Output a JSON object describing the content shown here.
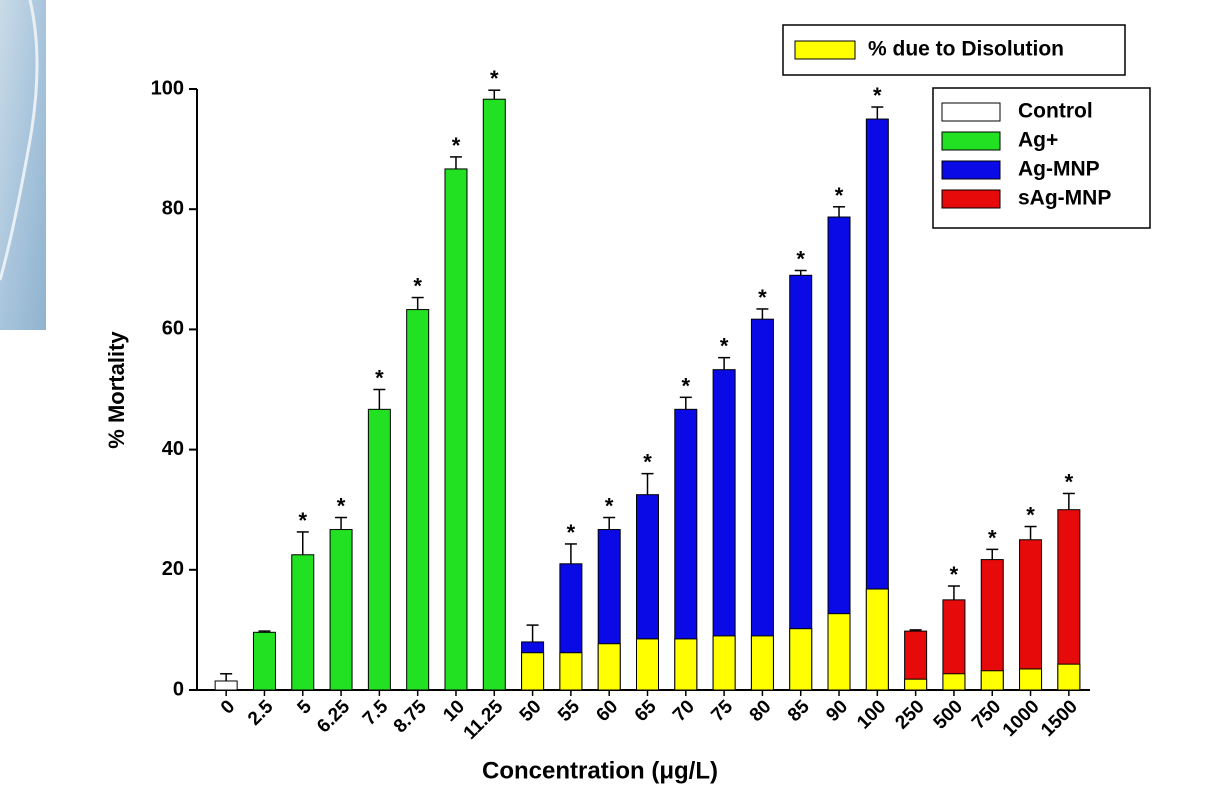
{
  "chart_data": {
    "type": "bar",
    "y_label": "% Mortality",
    "x_label": "Concentration (μg/L)",
    "categories": [
      "0",
      "2.5",
      "5",
      "6.25",
      "7.5",
      "8.75",
      "10",
      "11.25",
      "50",
      "55",
      "60",
      "65",
      "70",
      "75",
      "80",
      "85",
      "90",
      "100",
      "250",
      "500",
      "750",
      "1000",
      "1500"
    ],
    "series": [
      {
        "name": "Control",
        "color": "#ffffff",
        "values": [
          1.5,
          null,
          null,
          null,
          null,
          null,
          null,
          null,
          null,
          null,
          null,
          null,
          null,
          null,
          null,
          null,
          null,
          null,
          null,
          null,
          null,
          null,
          null
        ],
        "errors": [
          1.2,
          null,
          null,
          null,
          null,
          null,
          null,
          null,
          null,
          null,
          null,
          null,
          null,
          null,
          null,
          null,
          null,
          null,
          null,
          null,
          null,
          null,
          null
        ]
      },
      {
        "name": "Ag+",
        "color": "#22e022",
        "values": [
          null,
          9.6,
          22.5,
          26.7,
          46.7,
          63.3,
          86.7,
          98.3,
          null,
          null,
          null,
          null,
          null,
          null,
          null,
          null,
          null,
          null,
          null,
          null,
          null,
          null,
          null
        ],
        "errors": [
          null,
          0.2,
          3.8,
          2,
          3.3,
          2,
          2,
          1.5,
          null,
          null,
          null,
          null,
          null,
          null,
          null,
          null,
          null,
          null,
          null,
          null,
          null,
          null,
          null
        ]
      },
      {
        "name": "Ag-MNP",
        "color": "#0a0ae6",
        "values": [
          null,
          null,
          null,
          null,
          null,
          null,
          null,
          null,
          8,
          21,
          26.7,
          32.5,
          46.7,
          53.3,
          61.7,
          69,
          78.7,
          95,
          null,
          null,
          null,
          null,
          null
        ],
        "errors": [
          null,
          null,
          null,
          null,
          null,
          null,
          null,
          null,
          2.8,
          3.3,
          2,
          3.5,
          2,
          2,
          1.7,
          0.8,
          1.7,
          2,
          null,
          null,
          null,
          null,
          null
        ]
      },
      {
        "name": "sAg-MNP",
        "color": "#e60a0a",
        "values": [
          null,
          null,
          null,
          null,
          null,
          null,
          null,
          null,
          null,
          null,
          null,
          null,
          null,
          null,
          null,
          null,
          null,
          null,
          9.8,
          15,
          21.7,
          25,
          30
        ],
        "errors": [
          null,
          null,
          null,
          null,
          null,
          null,
          null,
          null,
          null,
          null,
          null,
          null,
          null,
          null,
          null,
          null,
          null,
          null,
          0.2,
          2.3,
          1.7,
          2.2,
          2.7
        ]
      }
    ],
    "dissolution": {
      "name": "% due to Disolution",
      "color": "#ffff00",
      "values": [
        null,
        null,
        null,
        null,
        null,
        null,
        null,
        null,
        6.2,
        6.2,
        7.7,
        8.5,
        8.5,
        9,
        9,
        10.2,
        12.7,
        16.8,
        1.8,
        2.7,
        3.2,
        3.5,
        4.3
      ]
    },
    "significance_labels": [
      null,
      null,
      "*",
      "*",
      "*",
      "*",
      "*",
      "*",
      null,
      "*",
      "*",
      "*",
      "*",
      "*",
      "*",
      "*",
      "*",
      "*",
      null,
      "*",
      "*",
      "*",
      "*"
    ],
    "ylim": [
      0,
      100
    ],
    "yticks": [
      0,
      20,
      40,
      60,
      80,
      100
    ]
  }
}
